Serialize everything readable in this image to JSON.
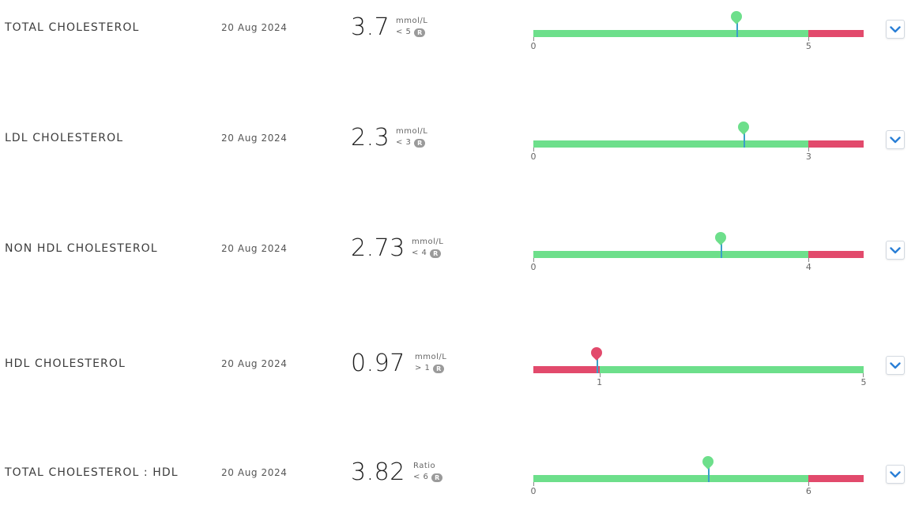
{
  "colors": {
    "in_range": "#6ddf8b",
    "out_of_range": "#e24a6c",
    "chevron": "#2a7fd6"
  },
  "results": [
    {
      "name": "TOTAL CHOLESTEROL",
      "date": "20 Aug 2024",
      "value": "3.7",
      "unit": "mmol/L",
      "ref": "< 5",
      "ref_badge": "R",
      "range_min": 0,
      "range_max": 6,
      "threshold": 5,
      "threshold_direction": "below",
      "ticks": [
        "0",
        "5"
      ],
      "marker_value": 3.7,
      "marker_status": "normal"
    },
    {
      "name": "LDL CHOLESTEROL",
      "date": "20 Aug 2024",
      "value": "2.3",
      "unit": "mmol/L",
      "ref": "< 3",
      "ref_badge": "R",
      "range_min": 0,
      "range_max": 3.6,
      "threshold": 3,
      "threshold_direction": "below",
      "ticks": [
        "0",
        "3"
      ],
      "marker_value": 2.3,
      "marker_status": "normal"
    },
    {
      "name": "NON HDL CHOLESTEROL",
      "date": "20 Aug 2024",
      "value": "2.73",
      "unit": "mmol/L",
      "ref": "< 4",
      "ref_badge": "R",
      "range_min": 0,
      "range_max": 4.8,
      "threshold": 4,
      "threshold_direction": "below",
      "ticks": [
        "0",
        "4"
      ],
      "marker_value": 2.73,
      "marker_status": "normal"
    },
    {
      "name": "HDL CHOLESTEROL",
      "date": "20 Aug 2024",
      "value": "0.97",
      "unit": "mmol/L",
      "ref": "> 1",
      "ref_badge": "R",
      "range_min": 0,
      "range_max": 5,
      "threshold": 1,
      "threshold_direction": "above",
      "ticks": [
        "1",
        "5"
      ],
      "marker_value": 0.97,
      "marker_status": "low"
    },
    {
      "name": "TOTAL CHOLESTEROL : HDL",
      "date": "20 Aug 2024",
      "value": "3.82",
      "unit": "Ratio",
      "ref": "< 6",
      "ref_badge": "R",
      "range_min": 0,
      "range_max": 7.2,
      "threshold": 6,
      "threshold_direction": "below",
      "ticks": [
        "0",
        "6"
      ],
      "marker_value": 3.82,
      "marker_status": "normal"
    }
  ]
}
